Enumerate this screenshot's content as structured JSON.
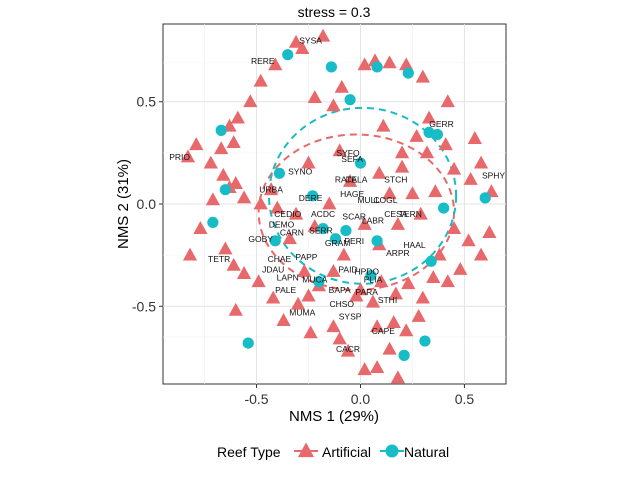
{
  "chart_data": {
    "type": "scatter",
    "title": "stress = 0.3",
    "xlabel": "NMS 1 (29%)",
    "ylabel": "NMS 2 (31%)",
    "xlim": [
      -0.95,
      0.7
    ],
    "ylim": [
      -0.88,
      0.88
    ],
    "xticks": [
      -0.5,
      0.0,
      0.5
    ],
    "yticks": [
      -0.5,
      0.0,
      0.5
    ],
    "xtick_labels": [
      "-0.5",
      "0.0",
      "0.5"
    ],
    "ytick_labels": [
      "-0.5",
      "0.0",
      "0.5"
    ],
    "grid": true,
    "legend": {
      "title": "Reef Type",
      "position": "bottom"
    },
    "series": [
      {
        "name": "Artificial",
        "color": "#E8696B",
        "marker": "triangle",
        "ellipse": {
          "cx": -0.02,
          "cy": -0.04,
          "rx": 0.47,
          "ry": 0.38
        },
        "points": [
          [
            -0.31,
            0.79
          ],
          [
            -0.18,
            0.82
          ],
          [
            -0.28,
            0.76
          ],
          [
            -0.41,
            0.68
          ],
          [
            -0.48,
            0.6
          ],
          [
            -0.53,
            0.5
          ],
          [
            -0.59,
            0.42
          ],
          [
            -0.63,
            0.38
          ],
          [
            -0.61,
            0.3
          ],
          [
            -0.67,
            0.27
          ],
          [
            -0.72,
            0.2
          ],
          [
            -0.79,
            0.29
          ],
          [
            -0.83,
            0.23
          ],
          [
            -0.66,
            0.14
          ],
          [
            -0.6,
            0.1
          ],
          [
            -0.56,
            0.03
          ],
          [
            -0.63,
            0.08
          ],
          [
            -0.48,
            0.0
          ],
          [
            -0.4,
            -0.02
          ],
          [
            -0.71,
            0.02
          ],
          [
            -0.77,
            -0.12
          ],
          [
            -0.82,
            -0.25
          ],
          [
            -0.65,
            -0.22
          ],
          [
            -0.61,
            -0.3
          ],
          [
            -0.56,
            -0.34
          ],
          [
            -0.49,
            -0.38
          ],
          [
            -0.6,
            -0.52
          ],
          [
            -0.42,
            -0.46
          ],
          [
            -0.37,
            -0.57
          ],
          [
            -0.3,
            -0.49
          ],
          [
            -0.24,
            -0.63
          ],
          [
            -0.13,
            -0.6
          ],
          [
            -0.1,
            -0.66
          ],
          [
            -0.06,
            -0.72
          ],
          [
            0.02,
            -0.81
          ],
          [
            0.08,
            -0.8
          ],
          [
            0.18,
            -0.85
          ],
          [
            0.14,
            -0.71
          ],
          [
            0.22,
            -0.62
          ],
          [
            0.28,
            -0.55
          ],
          [
            0.3,
            -0.46
          ],
          [
            0.23,
            -0.39
          ],
          [
            0.17,
            -0.44
          ],
          [
            0.1,
            -0.38
          ],
          [
            0.06,
            -0.48
          ],
          [
            0.35,
            -0.36
          ],
          [
            0.42,
            -0.38
          ],
          [
            0.48,
            -0.32
          ],
          [
            0.38,
            -0.25
          ],
          [
            0.45,
            -0.12
          ],
          [
            0.52,
            -0.18
          ],
          [
            0.58,
            -0.25
          ],
          [
            0.62,
            -0.14
          ],
          [
            0.63,
            0.06
          ],
          [
            0.58,
            0.2
          ],
          [
            0.55,
            0.32
          ],
          [
            0.53,
            0.12
          ],
          [
            0.45,
            0.17
          ],
          [
            0.41,
            0.29
          ],
          [
            0.32,
            0.25
          ],
          [
            0.27,
            0.33
          ],
          [
            0.33,
            0.42
          ],
          [
            0.42,
            0.5
          ],
          [
            0.3,
            0.62
          ],
          [
            0.22,
            0.68
          ],
          [
            0.14,
            0.69
          ],
          [
            0.07,
            0.7
          ],
          [
            0.02,
            0.68
          ],
          [
            -0.09,
            0.57
          ],
          [
            -0.13,
            0.48
          ],
          [
            -0.22,
            0.52
          ],
          [
            -0.1,
            0.26
          ],
          [
            0.2,
            0.25
          ],
          [
            0.14,
            0.05
          ],
          [
            -0.34,
            -0.17
          ],
          [
            -0.31,
            -0.05
          ],
          [
            -0.43,
            0.07
          ],
          [
            -0.08,
            -0.25
          ],
          [
            -0.13,
            -0.33
          ],
          [
            -0.2,
            -0.4
          ],
          [
            -0.25,
            -0.45
          ],
          [
            0.0,
            -0.42
          ],
          [
            0.08,
            -0.6
          ],
          [
            0.2,
            0.18
          ],
          [
            0.25,
            0.05
          ],
          [
            0.18,
            -0.1
          ],
          [
            0.29,
            -0.05
          ],
          [
            0.36,
            0.06
          ],
          [
            0.09,
            -0.2
          ],
          [
            0.02,
            -0.1
          ],
          [
            -0.05,
            0.11
          ],
          [
            -0.15,
            0.0
          ],
          [
            -0.22,
            -0.11
          ],
          [
            -0.27,
            -0.33
          ],
          [
            0.16,
            -0.58
          ],
          [
            -0.02,
            -0.45
          ],
          [
            0.09,
            0.15
          ],
          [
            0.11,
            0.38
          ],
          [
            -0.25,
            0.2
          ]
        ]
      },
      {
        "name": "Natural",
        "color": "#17BCC6",
        "marker": "circle",
        "ellipse": {
          "cx": 0.01,
          "cy": 0.04,
          "rx": 0.45,
          "ry": 0.43
        },
        "points": [
          [
            -0.35,
            0.73
          ],
          [
            -0.14,
            0.67
          ],
          [
            0.08,
            0.67
          ],
          [
            0.23,
            0.64
          ],
          [
            -0.67,
            0.36
          ],
          [
            -0.05,
            0.51
          ],
          [
            0.33,
            0.35
          ],
          [
            0.37,
            0.34
          ],
          [
            0.0,
            0.2
          ],
          [
            -0.39,
            0.15
          ],
          [
            -0.65,
            0.07
          ],
          [
            -0.23,
            0.04
          ],
          [
            0.4,
            -0.02
          ],
          [
            0.6,
            0.03
          ],
          [
            -0.71,
            -0.09
          ],
          [
            -0.41,
            -0.18
          ],
          [
            -0.18,
            -0.12
          ],
          [
            -0.12,
            -0.17
          ],
          [
            -0.07,
            -0.13
          ],
          [
            0.08,
            -0.18
          ],
          [
            0.34,
            -0.28
          ],
          [
            -0.2,
            -0.38
          ],
          [
            0.05,
            -0.35
          ],
          [
            0.31,
            -0.67
          ],
          [
            0.21,
            -0.74
          ],
          [
            -0.54,
            -0.68
          ]
        ]
      }
    ],
    "species_labels": [
      [
        "SYSA",
        -0.24,
        0.8
      ],
      [
        "RERE",
        -0.47,
        0.7
      ],
      [
        "GERR",
        0.39,
        0.39
      ],
      [
        "PRIO",
        -0.87,
        0.23
      ],
      [
        "SPHY",
        0.64,
        0.14
      ],
      [
        "SYFO",
        -0.06,
        0.25
      ],
      [
        "SEFA",
        -0.04,
        0.22
      ],
      [
        "RATE",
        -0.07,
        0.12
      ],
      [
        "CALA",
        -0.02,
        0.12
      ],
      [
        "STCH",
        0.17,
        0.12
      ],
      [
        "SYNO",
        -0.29,
        0.16
      ],
      [
        "URBA",
        -0.43,
        0.07
      ],
      [
        "HAGE",
        -0.04,
        0.05
      ],
      [
        "DERE",
        -0.24,
        0.03
      ],
      [
        "MULL",
        0.04,
        0.02
      ],
      [
        "COGL",
        0.12,
        0.02
      ],
      [
        "CESA",
        0.17,
        -0.05
      ],
      [
        "TERN",
        0.24,
        -0.05
      ],
      [
        "CEDIO",
        -0.35,
        -0.05
      ],
      [
        "ACDC",
        -0.18,
        -0.05
      ],
      [
        "DEMO",
        -0.38,
        -0.1
      ],
      [
        "CARN",
        -0.33,
        -0.14
      ],
      [
        "GOBY",
        -0.48,
        -0.17
      ],
      [
        "HAAL",
        0.26,
        -0.2
      ],
      [
        "ARPR",
        0.18,
        -0.24
      ],
      [
        "CHAE",
        -0.39,
        -0.27
      ],
      [
        "TETR",
        -0.68,
        -0.27
      ],
      [
        "JDAU",
        -0.42,
        -0.32
      ],
      [
        "PAID",
        -0.06,
        -0.32
      ],
      [
        "HPDO",
        0.03,
        -0.33
      ],
      [
        "LAPN",
        -0.35,
        -0.36
      ],
      [
        "MUCA",
        -0.22,
        -0.37
      ],
      [
        "PLIA",
        0.06,
        -0.37
      ],
      [
        "PALE",
        -0.36,
        -0.42
      ],
      [
        "BAPA",
        -0.1,
        -0.42
      ],
      [
        "PARA",
        0.03,
        -0.43
      ],
      [
        "STHI",
        0.13,
        -0.47
      ],
      [
        "CHSO",
        -0.09,
        -0.49
      ],
      [
        "MUMA",
        -0.28,
        -0.53
      ],
      [
        "SYSP",
        -0.05,
        -0.55
      ],
      [
        "CAPE",
        0.11,
        -0.62
      ],
      [
        "CACR",
        -0.06,
        -0.71
      ],
      [
        "SCAR",
        -0.03,
        -0.06
      ],
      [
        "GRAM",
        -0.11,
        -0.19
      ],
      [
        "PERI",
        -0.03,
        -0.18
      ],
      [
        "LABR",
        0.06,
        -0.08
      ],
      [
        "PAPP",
        -0.26,
        -0.26
      ],
      [
        "SERR",
        -0.19,
        -0.13
      ]
    ]
  }
}
